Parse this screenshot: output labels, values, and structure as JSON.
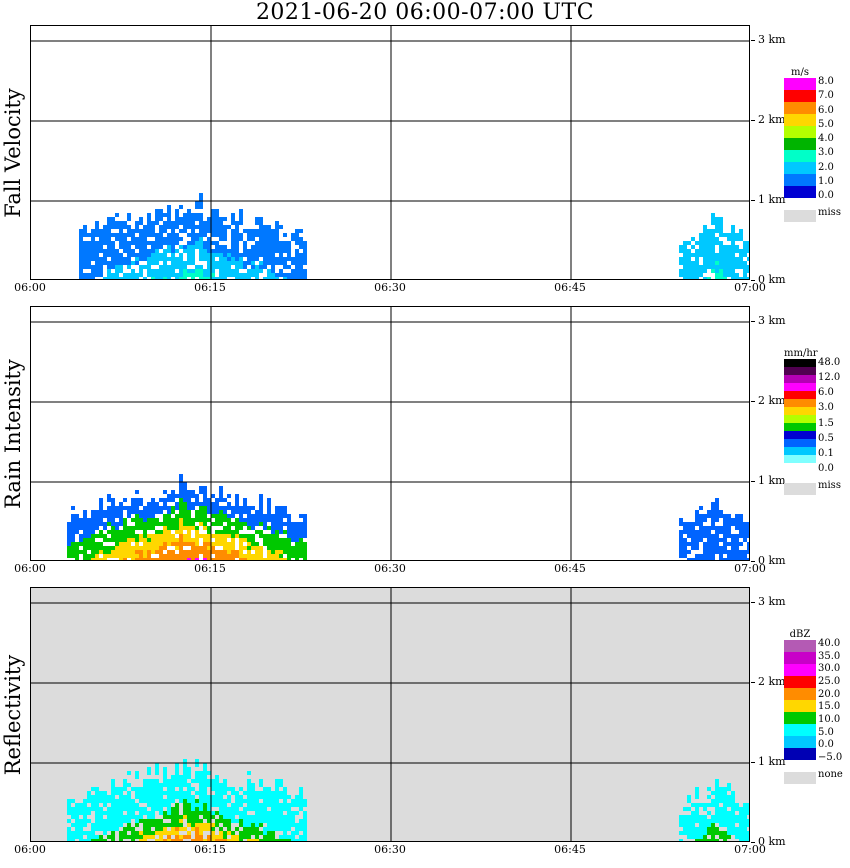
{
  "title": "2021-06-20   06:00-07:00 UTC",
  "x_ticks": [
    "06:00",
    "06:15",
    "06:30",
    "06:45",
    "07:00"
  ],
  "y_ticks": [
    "0 km",
    "1 km",
    "2 km",
    "3 km"
  ],
  "panels": [
    {
      "name": "Fall Velocity",
      "unit": "m/s",
      "background": "#ffffff",
      "legend_colors": [
        "#ff00ff",
        "#ff0000",
        "#ff8c00",
        "#ffd700",
        "#b4ff00",
        "#00b400",
        "#00ffc8",
        "#00c8ff",
        "#0078ff",
        "#0000d2"
      ],
      "legend_labels": [
        "8.0",
        "7.0",
        "6.0",
        "5.0",
        "4.0",
        "3.0",
        "2.0",
        "1.0",
        "0.0"
      ],
      "miss_label": "miss"
    },
    {
      "name": "Rain Intensity",
      "unit": "mm/hr",
      "background": "#ffffff",
      "legend_colors": [
        "#000000",
        "#500050",
        "#b400b4",
        "#ff00ff",
        "#ff0000",
        "#ff8c00",
        "#ffd700",
        "#b4ff00",
        "#00c800",
        "#0000d2",
        "#0064ff",
        "#00c8ff",
        "#80ffff",
        "#ffffff"
      ],
      "legend_labels": [
        "48.0",
        "12.0",
        "6.0",
        "3.0",
        "1.5",
        "0.5",
        "0.1",
        "0.0"
      ],
      "miss_label": "miss"
    },
    {
      "name": "Reflectivity",
      "unit": "dBZ",
      "background": "#dcdcdc",
      "legend_colors": [
        "#b45ab4",
        "#c800c8",
        "#ff00ff",
        "#ff0000",
        "#ff8c00",
        "#ffd700",
        "#00c800",
        "#00ffff",
        "#00c8ff",
        "#0000b4"
      ],
      "legend_labels": [
        "40.0",
        "35.0",
        "30.0",
        "25.0",
        "20.0",
        "15.0",
        "10.0",
        "5.0",
        "0.0",
        "−5.0"
      ],
      "miss_label": "none"
    }
  ],
  "chart_data": [
    {
      "type": "heatmap",
      "title": "Fall Velocity",
      "xlabel": "",
      "ylabel": "",
      "x_range": [
        "06:00",
        "07:00"
      ],
      "y_range_km": [
        0,
        3
      ],
      "colorbar_unit": "m/s",
      "colorbar_ticks": [
        0.0,
        1.0,
        2.0,
        3.0,
        4.0,
        5.0,
        6.0,
        7.0,
        8.0
      ],
      "grid": true,
      "features": [
        {
          "x_start": "06:04",
          "x_end": "06:23",
          "y_top_km": 1.1,
          "peak_time": "06:13",
          "peak_value": 3.5,
          "typical_value": 1.5
        },
        {
          "x_start": "06:54",
          "x_end": "07:00",
          "y_top_km": 0.9,
          "peak_value": 3.5,
          "typical_value": 2.0
        }
      ]
    },
    {
      "type": "heatmap",
      "title": "Rain Intensity",
      "xlabel": "",
      "ylabel": "",
      "x_range": [
        "06:00",
        "07:00"
      ],
      "y_range_km": [
        0,
        3
      ],
      "colorbar_unit": "mm/hr",
      "colorbar_ticks": [
        0.0,
        0.1,
        0.5,
        1.5,
        3.0,
        6.0,
        12.0,
        48.0
      ],
      "grid": true,
      "features": [
        {
          "x_start": "06:03",
          "x_end": "06:23",
          "y_top_km": 1.1,
          "peak_time": "06:13",
          "peak_value": 6.0,
          "typical_value": 0.1
        },
        {
          "x_start": "06:54",
          "x_end": "07:00",
          "y_top_km": 0.85,
          "peak_value": 0.5,
          "typical_value": 0.1
        }
      ]
    },
    {
      "type": "heatmap",
      "title": "Reflectivity",
      "xlabel": "",
      "ylabel": "",
      "x_range": [
        "06:00",
        "07:00"
      ],
      "y_range_km": [
        0,
        3
      ],
      "colorbar_unit": "dBZ",
      "colorbar_ticks": [
        -5.0,
        0.0,
        5.0,
        10.0,
        15.0,
        20.0,
        25.0,
        30.0,
        35.0,
        40.0
      ],
      "grid": true,
      "features": [
        {
          "x_start": "06:03",
          "x_end": "06:23",
          "y_top_km": 1.1,
          "peak_time": "06:13",
          "peak_value": 25.0,
          "typical_value": 5.0
        },
        {
          "x_start": "06:54",
          "x_end": "07:00",
          "y_top_km": 0.85,
          "peak_value": 15.0,
          "typical_value": 5.0
        }
      ]
    }
  ]
}
